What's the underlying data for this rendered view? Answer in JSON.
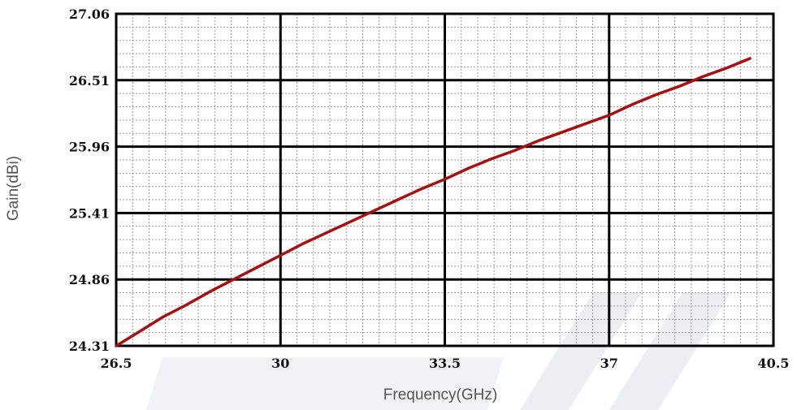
{
  "chart_data": {
    "type": "line",
    "title": "",
    "xlabel": "Frequency(GHz)",
    "ylabel": "Gain(dBi)",
    "xlim": [
      26.5,
      40.5
    ],
    "ylim": [
      24.31,
      27.06
    ],
    "x_ticks": [
      "26.5",
      "30",
      "33.5",
      "37",
      "40.5"
    ],
    "y_ticks": [
      "24.31",
      "24.86",
      "25.41",
      "25.96",
      "26.51",
      "27.06"
    ],
    "grid": true,
    "minor_grid": true,
    "legend": "none",
    "series": [
      {
        "color": "#a80f0f",
        "x": [
          26.5,
          27.0,
          27.5,
          28.0,
          28.5,
          29.0,
          29.5,
          30.0,
          30.5,
          31.0,
          31.5,
          32.0,
          32.5,
          33.0,
          33.5,
          34.0,
          34.5,
          35.0,
          35.5,
          36.0,
          36.5,
          37.0,
          37.5,
          38.0,
          38.5,
          39.0,
          39.5,
          40.0
        ],
        "y": [
          24.31,
          24.43,
          24.55,
          24.65,
          24.76,
          24.86,
          24.96,
          25.06,
          25.16,
          25.25,
          25.34,
          25.43,
          25.52,
          25.61,
          25.69,
          25.78,
          25.86,
          25.93,
          26.01,
          26.08,
          26.15,
          26.22,
          26.31,
          26.39,
          26.46,
          26.54,
          26.61,
          26.69
        ]
      }
    ]
  },
  "colors": {
    "line": "#a80f0f",
    "grid_major": "#000000",
    "grid_minor": "#9a9a9a",
    "watermark": "#eceef4"
  }
}
